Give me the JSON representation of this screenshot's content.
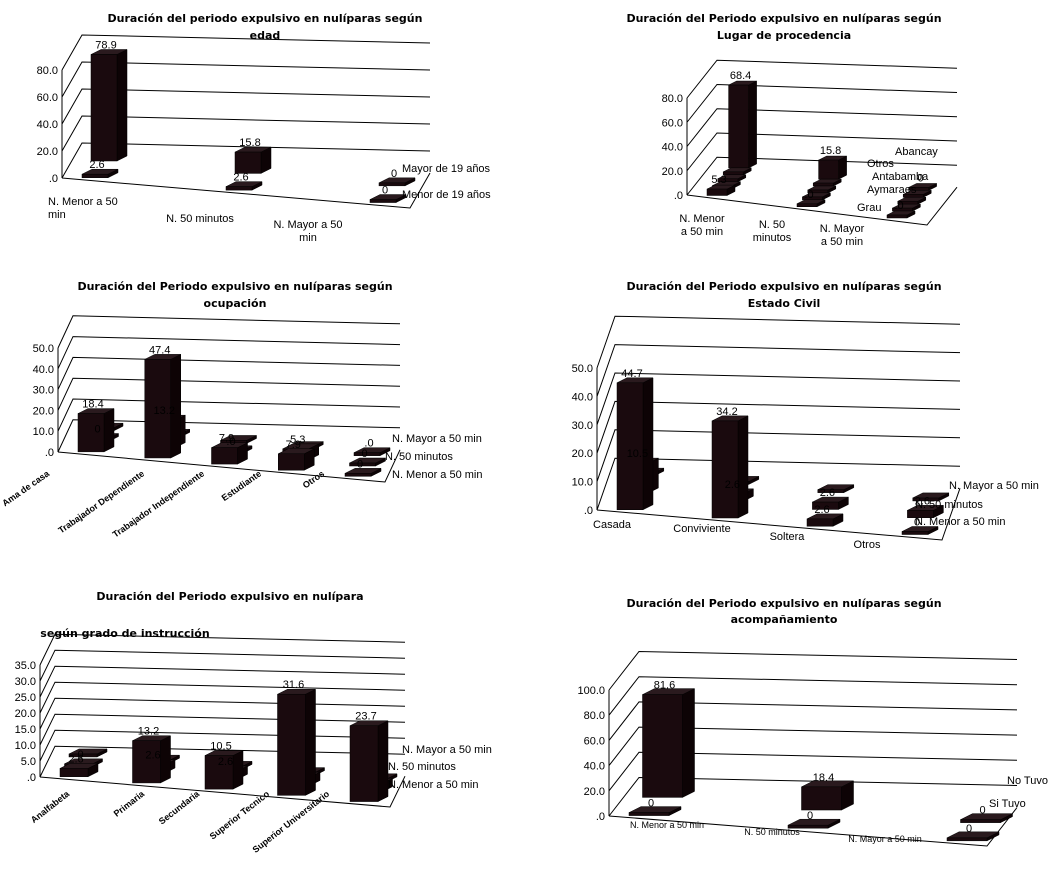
{
  "chart_data": [
    {
      "id": "c1",
      "type": "bar",
      "title": "Duración del periodo expulsivo en nulíparas según",
      "title2": "edad",
      "categories": [
        "N. Menor a 50\nmin",
        "N. 50 minutos",
        "N. Mayor a 50\nmin"
      ],
      "yticks": [
        ".0",
        "20.0",
        "40.0",
        "60.0",
        "80.0"
      ],
      "ylim": [
        0,
        80
      ],
      "series": [
        {
          "name": "Menor de 19 años",
          "values": [
            2.6,
            2.6,
            0
          ],
          "labels": [
            "2.6",
            "2.6",
            "0"
          ]
        },
        {
          "name": "Mayor de 19 años",
          "values": [
            78.9,
            15.8,
            0
          ],
          "labels": [
            "78.9",
            "15.8",
            "0"
          ]
        }
      ]
    },
    {
      "id": "c2",
      "type": "bar",
      "title": "Duración del Periodo expulsivo en nulíparas según",
      "title2": "Lugar de procedencia",
      "categories": [
        "N. Menor\na 50 min",
        "N. 50\nminutos",
        "N. Mayor\na 50 min"
      ],
      "yticks": [
        ".0",
        "20.0",
        "40.0",
        "60.0",
        "80.0"
      ],
      "ylim": [
        0,
        80
      ],
      "series": [
        {
          "name": "Grau",
          "values": [
            5.3,
            0,
            0
          ],
          "labels": [
            "5.3",
            ".0",
            ".0"
          ]
        },
        {
          "name": "Aymaraes",
          "values": [
            0,
            0,
            0
          ],
          "labels": [
            "",
            "",
            ""
          ]
        },
        {
          "name": "Antabamba",
          "values": [
            0,
            0,
            0
          ],
          "labels": [
            "",
            "",
            ""
          ]
        },
        {
          "name": "Otros",
          "values": [
            0,
            0,
            0
          ],
          "labels": [
            "",
            "",
            ""
          ]
        },
        {
          "name": "Abancay",
          "values": [
            68.4,
            15.8,
            0
          ],
          "labels": [
            "68.4",
            "15.8",
            "0"
          ]
        }
      ]
    },
    {
      "id": "c3",
      "type": "bar",
      "title": "Duración del Periodo expulsivo en nulíparas según",
      "title2": "ocupación",
      "categories": [
        "Ama de casa",
        "Trabajador Dependiente",
        "Trabajador Independiente",
        "Estudiante",
        "Otros"
      ],
      "yticks": [
        ".0",
        "10.0",
        "20.0",
        "30.0",
        "40.0",
        "50.0"
      ],
      "ylim": [
        0,
        50
      ],
      "series": [
        {
          "name": "N. Menor a 50 min",
          "values": [
            18.4,
            47.4,
            7.9,
            7.9,
            0
          ],
          "labels": [
            "18.4",
            "47.4",
            "7.9",
            "7.9",
            "0"
          ]
        },
        {
          "name": "N. 50 minutos",
          "values": [
            0,
            13.2,
            0,
            5.3,
            0
          ],
          "labels": [
            "0",
            "13.2",
            ".0",
            "5.3",
            "0"
          ]
        },
        {
          "name": "N. Mayor a 50 min",
          "values": [
            0,
            0,
            0,
            0,
            0
          ],
          "labels": [
            "",
            "",
            "",
            "",
            ".0"
          ]
        }
      ]
    },
    {
      "id": "c4",
      "type": "bar",
      "title": "Duración del Periodo expulsivo en nulíparas según",
      "title2": "Estado Civil",
      "categories": [
        "Casada",
        "Conviviente",
        "Soltera",
        "Otros"
      ],
      "yticks": [
        ".0",
        "10.0",
        "20.0",
        "30.0",
        "40.0",
        "50.0"
      ],
      "ylim": [
        0,
        50
      ],
      "series": [
        {
          "name": "N. Menor a 50 min",
          "values": [
            44.7,
            34.2,
            2.6,
            0
          ],
          "labels": [
            "44.7",
            "34.2",
            "2.6",
            "0"
          ]
        },
        {
          "name": "N. 50 minutos",
          "values": [
            10.5,
            2.6,
            2.6,
            2.6
          ],
          "labels": [
            "10.5",
            "2.6",
            "2.6",
            "2.6"
          ]
        },
        {
          "name": "N. Mayor a 50 min",
          "values": [
            0,
            0,
            0,
            0
          ],
          "labels": [
            "",
            "",
            "",
            ""
          ]
        }
      ]
    },
    {
      "id": "c5",
      "type": "bar",
      "title": "Duración del Periodo expulsivo en nulípara",
      "title2": "según grado de instrucción",
      "categories": [
        "Analfabeta",
        "Primaria",
        "Secundaria",
        "Superior Tecnico",
        "Superior Universitario"
      ],
      "yticks": [
        ".0",
        "5.0",
        "10.0",
        "15.0",
        "20.0",
        "25.0",
        "30.0",
        "35.0"
      ],
      "ylim": [
        0,
        35
      ],
      "series": [
        {
          "name": "N. Menor a 50 min",
          "values": [
            2.6,
            13.2,
            10.5,
            31.6,
            23.7
          ],
          "labels": [
            "2.6",
            "13.2",
            "10.5",
            "31.6",
            "23.7"
          ]
        },
        {
          "name": "N. 50 minutos",
          "values": [
            0,
            2.6,
            2.6,
            2.6,
            2.6
          ],
          "labels": [
            "0",
            "2.6",
            "2.6",
            "",
            ""
          ]
        },
        {
          "name": "N. Mayor a 50 min",
          "values": [
            0,
            0,
            0,
            0,
            0
          ],
          "labels": [
            "",
            "",
            "",
            "",
            ""
          ]
        }
      ]
    },
    {
      "id": "c6",
      "type": "bar",
      "title": "Duración del Periodo expulsivo en nulíparas según",
      "title2": "acompañamiento",
      "categories": [
        "N. Menor a 50 min",
        "N. 50 minutos",
        "N. Mayor a 50 min"
      ],
      "yticks": [
        ".0",
        "20.0",
        "40.0",
        "60.0",
        "80.0",
        "100.0"
      ],
      "ylim": [
        0,
        100
      ],
      "series": [
        {
          "name": "Si Tuvo",
          "values": [
            0,
            0,
            0
          ],
          "labels": [
            "0",
            "0",
            "0"
          ]
        },
        {
          "name": "No Tuvo",
          "values": [
            81.6,
            18.4,
            0
          ],
          "labels": [
            "81.6",
            "18.4",
            "0"
          ]
        }
      ]
    }
  ]
}
